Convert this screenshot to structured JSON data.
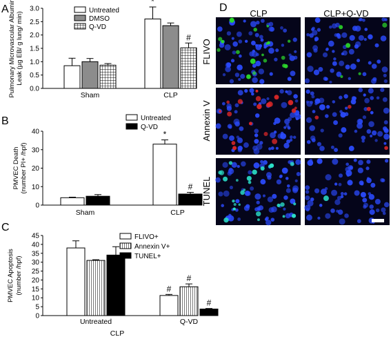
{
  "panels": {
    "A": "A",
    "B": "B",
    "C": "C",
    "D": "D"
  },
  "chart_data": [
    {
      "panel": "A",
      "type": "bar",
      "categories": [
        "Sham",
        "CLP"
      ],
      "ylabel_lines": [
        "Pulmonary Microvascular Albumin",
        "Leak (µg EB/ g lung/ min)"
      ],
      "ylim": [
        0,
        3
      ],
      "yticks": [
        "0.0",
        "0.5",
        "1.0",
        "1.5",
        "2.0",
        "2.5",
        "3.0"
      ],
      "tick_values": [
        0,
        0.5,
        1,
        1.5,
        2,
        2.5,
        3
      ],
      "legend_position": "top-left",
      "series": [
        {
          "name": "Untreated",
          "fill": "white",
          "values": [
            0.85,
            2.6
          ],
          "errors": [
            0.28,
            0.45
          ],
          "markers": [
            "",
            "*"
          ]
        },
        {
          "name": "DMSO",
          "fill": "gray",
          "values": [
            1.0,
            2.35
          ],
          "errors": [
            0.12,
            0.1
          ],
          "markers": [
            "",
            ""
          ]
        },
        {
          "name": "Q-VD",
          "fill": "black",
          "values": [
            0.87,
            1.52
          ],
          "errors": [
            0.06,
            0.18
          ],
          "markers": [
            "",
            "#"
          ]
        }
      ]
    },
    {
      "panel": "B",
      "type": "bar",
      "categories": [
        "Sham",
        "CLP"
      ],
      "ylabel_lines": [
        "PMVEC Death",
        "(number PI+ /hpf)"
      ],
      "ylim": [
        0,
        40
      ],
      "yticks": [
        "0",
        "10",
        "20",
        "30",
        "40"
      ],
      "tick_values": [
        0,
        10,
        20,
        30,
        40
      ],
      "legend_position": "top-right",
      "series": [
        {
          "name": "Untreated",
          "fill": "white",
          "values": [
            4.0,
            33.0
          ],
          "errors": [
            0.3,
            2.3
          ],
          "markers": [
            "",
            "*"
          ]
        },
        {
          "name": "Q-VD",
          "fill": "black",
          "values": [
            4.8,
            6.0
          ],
          "errors": [
            0.9,
            0.9
          ],
          "markers": [
            "",
            "#"
          ]
        }
      ]
    },
    {
      "panel": "C",
      "type": "bar",
      "categories": [
        "Untreated",
        "Q-VD"
      ],
      "xlabel": "CLP",
      "ylabel_lines": [
        "PMVEC Apoptosis",
        "(number /hpf)"
      ],
      "ylim": [
        0,
        45
      ],
      "yticks": [
        "0",
        "5",
        "10",
        "15",
        "20",
        "25",
        "30",
        "35",
        "40",
        "45"
      ],
      "tick_values": [
        0,
        5,
        10,
        15,
        20,
        25,
        30,
        35,
        40,
        45
      ],
      "legend_position": "top-right",
      "series": [
        {
          "name": "FLIVO+",
          "fill": "white",
          "values": [
            38,
            11.3
          ],
          "errors": [
            4.0,
            0.6
          ],
          "markers": [
            "",
            "#"
          ]
        },
        {
          "name": "Annexin V+",
          "fill": "striped",
          "values": [
            31,
            16.2
          ],
          "errors": [
            0.4,
            1.6
          ],
          "markers": [
            "",
            "#"
          ]
        },
        {
          "name": "TUNEL+",
          "fill": "black",
          "values": [
            34,
            3.7
          ],
          "errors": [
            4.7,
            0.3
          ],
          "markers": [
            "",
            "#"
          ]
        }
      ]
    }
  ],
  "micrographs": {
    "columns": [
      "CLP",
      "CLP+Q-VD"
    ],
    "rows": [
      {
        "label": "FLIVO",
        "signal_color": "#2bd62b",
        "signal_level": [
          0.45,
          0.12
        ]
      },
      {
        "label": "Annexin V",
        "signal_color": "#e02828",
        "signal_level": [
          0.45,
          0.1
        ]
      },
      {
        "label": "TUNEL",
        "signal_color": "#2be0c8",
        "signal_level": [
          0.65,
          0.03
        ]
      }
    ],
    "nuclei_color": "#2b4bff",
    "background_color": "#05051a"
  }
}
